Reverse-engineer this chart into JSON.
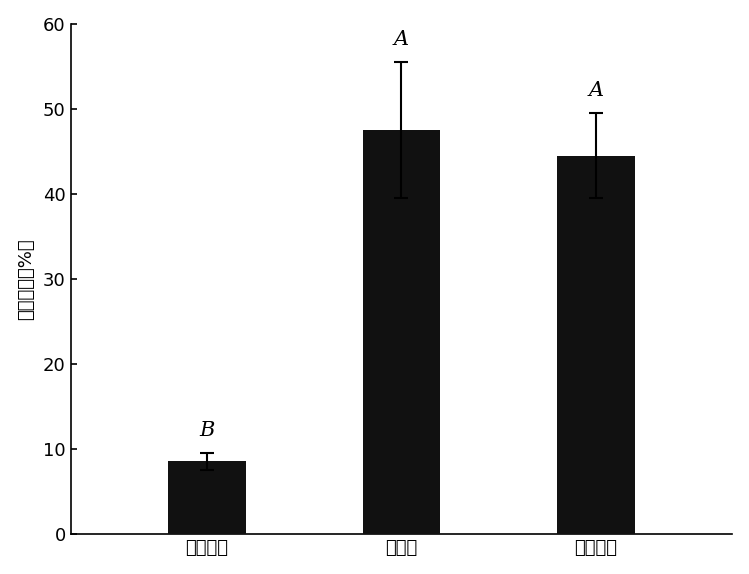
{
  "categories": [
    "失活菌剂",
    "发酵液",
    "化学农药"
  ],
  "values": [
    8.6,
    47.5,
    44.5
  ],
  "errors": [
    1.0,
    8.0,
    5.0
  ],
  "labels": [
    "B",
    "A",
    "A"
  ],
  "bar_color": "#111111",
  "bar_width": 0.4,
  "ylim": [
    0,
    60
  ],
  "yticks": [
    0,
    10,
    20,
    30,
    40,
    50,
    60
  ],
  "ylabel": "防治效果（%）",
  "ylabel_fontsize": 13,
  "tick_fontsize": 13,
  "label_fontsize": 15,
  "xtick_fontsize": 13,
  "background_color": "#ffffff",
  "error_capsize": 5,
  "error_linewidth": 1.5
}
